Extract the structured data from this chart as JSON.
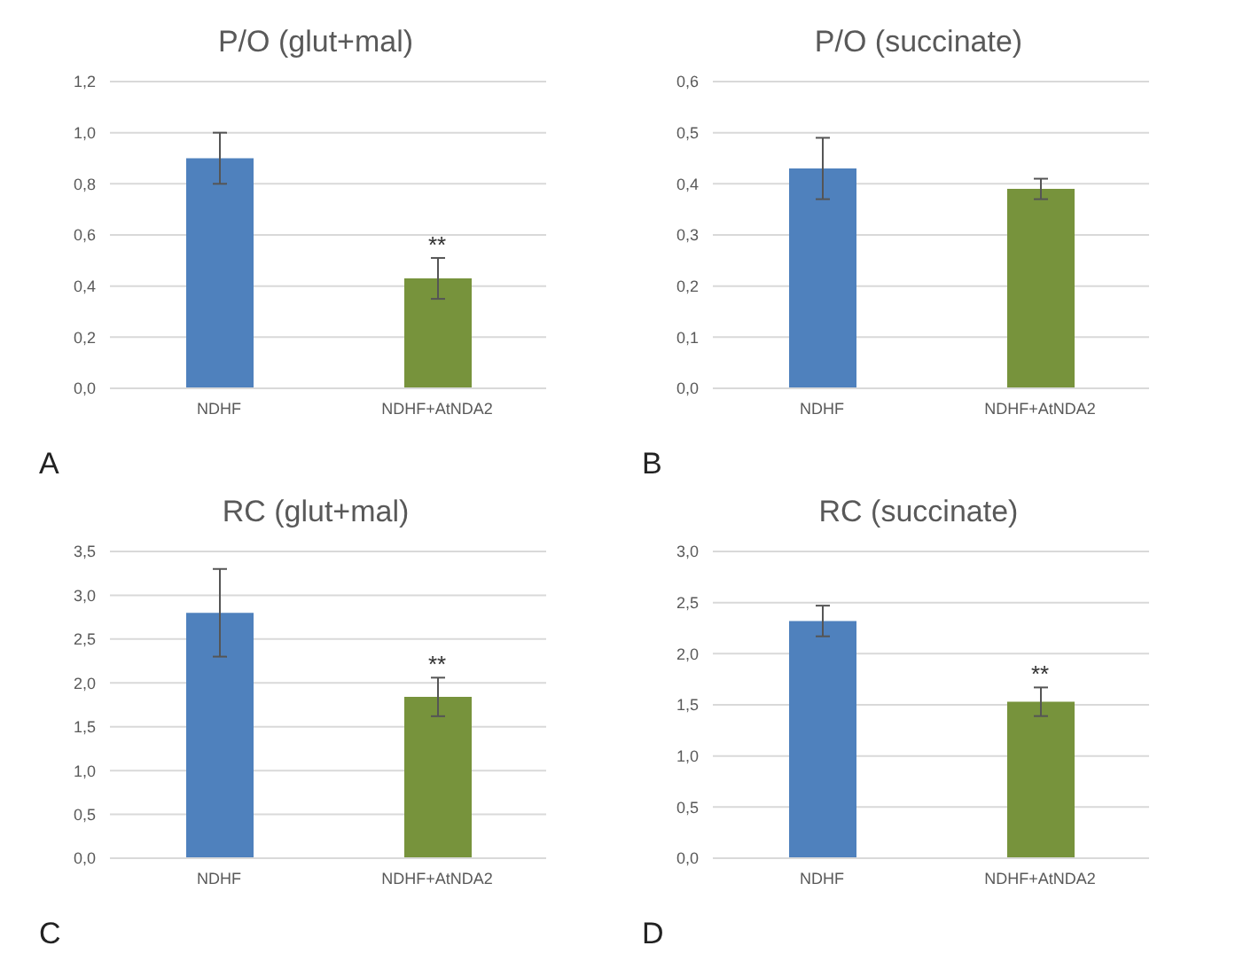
{
  "chart_data": [
    {
      "type": "bar",
      "title": "P/O (glut+mal)",
      "categories": [
        "NDHF",
        "NDHF+AtNDA2"
      ],
      "values": [
        0.9,
        0.43
      ],
      "colors": [
        "#4f81bd",
        "#77933c"
      ],
      "errors": [
        0.1,
        0.08
      ],
      "ylim": [
        0,
        1.2
      ],
      "yticks": [
        {
          "value": 0,
          "label": "0,0"
        },
        {
          "value": 0.2,
          "label": "0,2"
        },
        {
          "value": 0.4,
          "label": "0,4"
        },
        {
          "value": 0.6,
          "label": "0,6"
        },
        {
          "value": 0.8,
          "label": "0,8"
        },
        {
          "value": 1.0,
          "label": "1,0"
        },
        {
          "value": 1.2,
          "label": "1,2"
        }
      ],
      "grid": "y",
      "legend": false,
      "annotations": [
        {
          "text": "**",
          "x": "NDHF+AtNDA2",
          "y": 0.51
        },
        "A"
      ]
    },
    {
      "type": "bar",
      "title": "P/O (succinate)",
      "categories": [
        "NDHF",
        "NDHF+AtNDA2"
      ],
      "values": [
        0.43,
        0.39
      ],
      "colors": [
        "#4f81bd",
        "#77933c"
      ],
      "errors": [
        0.06,
        0.02
      ],
      "ylim": [
        0,
        0.6
      ],
      "yticks": [
        {
          "value": 0,
          "label": "0,0"
        },
        {
          "value": 0.1,
          "label": "0,1"
        },
        {
          "value": 0.2,
          "label": "0,2"
        },
        {
          "value": 0.3,
          "label": "0,3"
        },
        {
          "value": 0.4,
          "label": "0,4"
        },
        {
          "value": 0.5,
          "label": "0,5"
        },
        {
          "value": 0.6,
          "label": "0,6"
        }
      ],
      "grid": "y",
      "legend": false,
      "annotations": [
        "B"
      ]
    },
    {
      "type": "bar",
      "title": "RC (glut+mal)",
      "categories": [
        "NDHF",
        "NDHF+AtNDA2"
      ],
      "values": [
        2.8,
        1.84
      ],
      "colors": [
        "#4f81bd",
        "#77933c"
      ],
      "errors": [
        0.5,
        0.22
      ],
      "ylim": [
        0,
        3.5
      ],
      "yticks": [
        {
          "value": 0,
          "label": "0,0"
        },
        {
          "value": 0.5,
          "label": "0,5"
        },
        {
          "value": 1.0,
          "label": "1,0"
        },
        {
          "value": 1.5,
          "label": "1,5"
        },
        {
          "value": 2.0,
          "label": "2,0"
        },
        {
          "value": 2.5,
          "label": "2,5"
        },
        {
          "value": 3.0,
          "label": "3,0"
        },
        {
          "value": 3.5,
          "label": "3,5"
        }
      ],
      "grid": "y",
      "legend": false,
      "annotations": [
        {
          "text": "**",
          "x": "NDHF+AtNDA2",
          "y": 2.06
        },
        "C"
      ]
    },
    {
      "type": "bar",
      "title": "RC (succinate)",
      "categories": [
        "NDHF",
        "NDHF+AtNDA2"
      ],
      "values": [
        2.32,
        1.53
      ],
      "colors": [
        "#4f81bd",
        "#77933c"
      ],
      "errors": [
        0.15,
        0.14
      ],
      "ylim": [
        0,
        3.0
      ],
      "yticks": [
        {
          "value": 0,
          "label": "0,0"
        },
        {
          "value": 0.5,
          "label": "0,5"
        },
        {
          "value": 1.0,
          "label": "1,0"
        },
        {
          "value": 1.5,
          "label": "1,5"
        },
        {
          "value": 2.0,
          "label": "2,0"
        },
        {
          "value": 2.5,
          "label": "2,5"
        },
        {
          "value": 3.0,
          "label": "3,0"
        }
      ],
      "grid": "y",
      "legend": false,
      "annotations": [
        {
          "text": "**",
          "x": "NDHF+AtNDA2",
          "y": 1.67
        },
        "D"
      ]
    }
  ]
}
